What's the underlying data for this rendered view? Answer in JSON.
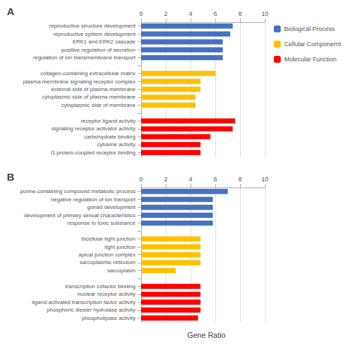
{
  "chart_data": [
    {
      "type": "bar",
      "orientation": "horizontal",
      "title": "A",
      "categories": [
        "reproductive structure development",
        "reproductive system development",
        "ERK1 and ERK2 cascade",
        "positive regulation of secretion",
        "regulation of ion transmembrane transport",
        null,
        "collagen-containing extracellular matrix",
        "plasma membrane signaling receptor complex",
        "external side of plasma membrane",
        "cytoplasmic side of plasma membrane",
        "cytoplasmic side of membrane",
        null,
        "receptor ligand activity",
        "signaling receptor activator activity",
        "carbohydrate binding",
        "cytokine activity",
        "G protein-coupled receptor binding"
      ],
      "series": [
        {
          "name": "Biological Process",
          "color": "#4472C4",
          "values": [
            7.4,
            7.2,
            6.6,
            6.6,
            6.6,
            null,
            null,
            null,
            null,
            null,
            null,
            null,
            null,
            null,
            null,
            null,
            null
          ]
        },
        {
          "name": "Cellular Componernt",
          "color": "#FFC000",
          "values": [
            null,
            null,
            null,
            null,
            null,
            null,
            6.0,
            4.8,
            4.8,
            4.4,
            4.4,
            null,
            null,
            null,
            null,
            null,
            null
          ]
        },
        {
          "name": "Molecular Function",
          "color": "#FF0000",
          "values": [
            null,
            null,
            null,
            null,
            null,
            null,
            null,
            null,
            null,
            null,
            null,
            null,
            7.6,
            7.4,
            5.6,
            4.8,
            4.8
          ]
        }
      ],
      "xlim": [
        0,
        10
      ],
      "xticks": [
        0,
        2,
        4,
        6,
        8,
        10
      ],
      "grid": true,
      "legend": "upper right"
    },
    {
      "type": "bar",
      "orientation": "horizontal",
      "title": "B",
      "xlabel": "Gene Ratio",
      "categories": [
        "purine-containing compound metabolic process",
        "negative regulation of ion transport",
        "gonad development",
        "development of primary sexual characteristics",
        "response to toxic substance",
        null,
        "bicellular tight junction",
        "tight junction",
        "apical junction complex",
        "sarcoplasmic reticulum",
        "sarcoplasm",
        null,
        "transcription cofactor binding",
        "nuclear receptor activity",
        "ligand-activated transcription factor activity",
        "phosphoric diester hydrolase activity",
        "phospholipase activity"
      ],
      "series": [
        {
          "name": "Biological Process",
          "color": "#4472C4",
          "values": [
            7.0,
            5.8,
            5.8,
            5.8,
            5.8,
            null,
            null,
            null,
            null,
            null,
            null,
            null,
            null,
            null,
            null,
            null,
            null
          ]
        },
        {
          "name": "Cellular Componernt",
          "color": "#FFC000",
          "values": [
            null,
            null,
            null,
            null,
            null,
            null,
            4.8,
            4.8,
            4.8,
            4.8,
            2.8,
            null,
            null,
            null,
            null,
            null,
            null
          ]
        },
        {
          "name": "Molecular Function",
          "color": "#FF0000",
          "values": [
            null,
            null,
            null,
            null,
            null,
            null,
            null,
            null,
            null,
            null,
            null,
            null,
            4.8,
            4.8,
            4.8,
            4.8,
            4.6
          ]
        }
      ],
      "xlim": [
        0,
        10
      ],
      "xticks": [
        0,
        2,
        4,
        6,
        8,
        10
      ],
      "grid": true
    }
  ]
}
